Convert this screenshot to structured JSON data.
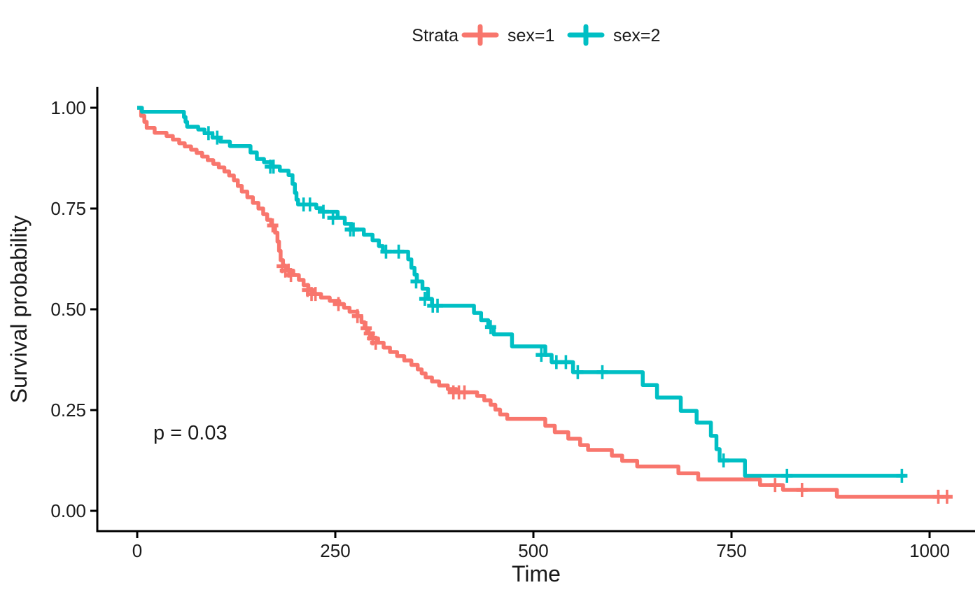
{
  "legend": {
    "title": "Strata",
    "items": [
      {
        "label": "sex=1",
        "color": "#F8766D"
      },
      {
        "label": "sex=2",
        "color": "#00BFC4"
      }
    ]
  },
  "axes": {
    "x": {
      "label": "Time",
      "ticks": [
        0,
        250,
        500,
        750,
        1000
      ],
      "tick_labels": [
        "0",
        "250",
        "500",
        "750",
        "1000"
      ]
    },
    "y": {
      "label": "Survival probability",
      "ticks": [
        0,
        0.25,
        0.5,
        0.75,
        1.0
      ],
      "tick_labels": [
        "0.00",
        "0.25",
        "0.50",
        "0.75",
        "1.00"
      ]
    }
  },
  "chart_data": {
    "type": "line",
    "subtype": "kaplan-meier-step",
    "title": "",
    "xlabel": "Time",
    "ylabel": "Survival probability",
    "xlim": [
      0,
      1040
    ],
    "ylim": [
      0,
      1.0
    ],
    "grid": false,
    "legend_position": "top",
    "legend_title": "Strata",
    "p_value": "p = 0.03",
    "series": [
      {
        "name": "sex=1",
        "color": "#F8766D",
        "end_time": 1025,
        "steps": [
          [
            0,
            1.0
          ],
          [
            5,
            0.98
          ],
          [
            9,
            0.965
          ],
          [
            12,
            0.95
          ],
          [
            22,
            0.938
          ],
          [
            37,
            0.93
          ],
          [
            45,
            0.921
          ],
          [
            53,
            0.912
          ],
          [
            60,
            0.904
          ],
          [
            68,
            0.896
          ],
          [
            75,
            0.888
          ],
          [
            82,
            0.879
          ],
          [
            89,
            0.87
          ],
          [
            96,
            0.861
          ],
          [
            103,
            0.852
          ],
          [
            110,
            0.842
          ],
          [
            116,
            0.832
          ],
          [
            122,
            0.82
          ],
          [
            127,
            0.806
          ],
          [
            132,
            0.792
          ],
          [
            139,
            0.778
          ],
          [
            146,
            0.764
          ],
          [
            153,
            0.75
          ],
          [
            159,
            0.736
          ],
          [
            164,
            0.722
          ],
          [
            169,
            0.708
          ],
          [
            174,
            0.69
          ],
          [
            177,
            0.668
          ],
          [
            179,
            0.645
          ],
          [
            181,
            0.622
          ],
          [
            184,
            0.607
          ],
          [
            190,
            0.596
          ],
          [
            197,
            0.585
          ],
          [
            204,
            0.573
          ],
          [
            210,
            0.56
          ],
          [
            216,
            0.548
          ],
          [
            223,
            0.538
          ],
          [
            232,
            0.529
          ],
          [
            243,
            0.521
          ],
          [
            255,
            0.513
          ],
          [
            261,
            0.504
          ],
          [
            268,
            0.494
          ],
          [
            278,
            0.483
          ],
          [
            283,
            0.468
          ],
          [
            287,
            0.453
          ],
          [
            292,
            0.44
          ],
          [
            297,
            0.428
          ],
          [
            304,
            0.417
          ],
          [
            311,
            0.405
          ],
          [
            319,
            0.394
          ],
          [
            328,
            0.384
          ],
          [
            337,
            0.373
          ],
          [
            346,
            0.362
          ],
          [
            354,
            0.351
          ],
          [
            359,
            0.341
          ],
          [
            364,
            0.331
          ],
          [
            372,
            0.321
          ],
          [
            381,
            0.311
          ],
          [
            392,
            0.302
          ],
          [
            403,
            0.294
          ],
          [
            429,
            0.285
          ],
          [
            438,
            0.274
          ],
          [
            446,
            0.263
          ],
          [
            452,
            0.251
          ],
          [
            458,
            0.239
          ],
          [
            467,
            0.228
          ],
          [
            515,
            0.211
          ],
          [
            527,
            0.195
          ],
          [
            544,
            0.179
          ],
          [
            559,
            0.163
          ],
          [
            569,
            0.151
          ],
          [
            599,
            0.137
          ],
          [
            612,
            0.124
          ],
          [
            631,
            0.11
          ],
          [
            683,
            0.093
          ],
          [
            708,
            0.078
          ],
          [
            786,
            0.064
          ],
          [
            815,
            0.052
          ],
          [
            883,
            0.035
          ]
        ],
        "censor_marks": [
          [
            171,
            0.708
          ],
          [
            183,
            0.607
          ],
          [
            187,
            0.596
          ],
          [
            191,
            0.596
          ],
          [
            194,
            0.585
          ],
          [
            215,
            0.548
          ],
          [
            220,
            0.538
          ],
          [
            225,
            0.538
          ],
          [
            254,
            0.513
          ],
          [
            278,
            0.483
          ],
          [
            289,
            0.453
          ],
          [
            293,
            0.44
          ],
          [
            297,
            0.428
          ],
          [
            301,
            0.417
          ],
          [
            399,
            0.294
          ],
          [
            406,
            0.294
          ],
          [
            413,
            0.294
          ],
          [
            805,
            0.064
          ],
          [
            839,
            0.052
          ],
          [
            1011,
            0.035
          ],
          [
            1022,
            0.035
          ]
        ]
      },
      {
        "name": "sex=2",
        "color": "#00BFC4",
        "end_time": 969,
        "steps": [
          [
            0,
            1.0
          ],
          [
            6,
            0.99
          ],
          [
            59,
            0.977
          ],
          [
            61,
            0.965
          ],
          [
            63,
            0.953
          ],
          [
            77,
            0.946
          ],
          [
            85,
            0.937
          ],
          [
            95,
            0.926
          ],
          [
            105,
            0.916
          ],
          [
            117,
            0.905
          ],
          [
            143,
            0.889
          ],
          [
            151,
            0.873
          ],
          [
            160,
            0.865
          ],
          [
            170,
            0.854
          ],
          [
            180,
            0.844
          ],
          [
            191,
            0.833
          ],
          [
            196,
            0.811
          ],
          [
            199,
            0.789
          ],
          [
            201,
            0.772
          ],
          [
            203,
            0.76
          ],
          [
            226,
            0.751
          ],
          [
            234,
            0.742
          ],
          [
            253,
            0.727
          ],
          [
            262,
            0.712
          ],
          [
            271,
            0.698
          ],
          [
            286,
            0.685
          ],
          [
            297,
            0.671
          ],
          [
            305,
            0.657
          ],
          [
            310,
            0.643
          ],
          [
            342,
            0.624
          ],
          [
            346,
            0.603
          ],
          [
            350,
            0.586
          ],
          [
            353,
            0.569
          ],
          [
            360,
            0.551
          ],
          [
            367,
            0.526
          ],
          [
            372,
            0.509
          ],
          [
            425,
            0.491
          ],
          [
            434,
            0.473
          ],
          [
            443,
            0.456
          ],
          [
            450,
            0.438
          ],
          [
            473,
            0.408
          ],
          [
            515,
            0.387
          ],
          [
            523,
            0.369
          ],
          [
            550,
            0.344
          ],
          [
            638,
            0.312
          ],
          [
            656,
            0.281
          ],
          [
            686,
            0.248
          ],
          [
            706,
            0.219
          ],
          [
            724,
            0.186
          ],
          [
            731,
            0.153
          ],
          [
            735,
            0.125
          ],
          [
            767,
            0.087
          ]
        ],
        "censor_marks": [
          [
            90,
            0.937
          ],
          [
            101,
            0.926
          ],
          [
            168,
            0.854
          ],
          [
            172,
            0.854
          ],
          [
            210,
            0.76
          ],
          [
            218,
            0.76
          ],
          [
            235,
            0.742
          ],
          [
            247,
            0.727
          ],
          [
            269,
            0.698
          ],
          [
            273,
            0.698
          ],
          [
            314,
            0.643
          ],
          [
            330,
            0.643
          ],
          [
            352,
            0.569
          ],
          [
            363,
            0.526
          ],
          [
            373,
            0.509
          ],
          [
            379,
            0.509
          ],
          [
            446,
            0.456
          ],
          [
            510,
            0.387
          ],
          [
            529,
            0.369
          ],
          [
            541,
            0.369
          ],
          [
            556,
            0.344
          ],
          [
            587,
            0.344
          ],
          [
            740,
            0.125
          ],
          [
            820,
            0.087
          ],
          [
            965,
            0.087
          ]
        ]
      }
    ]
  }
}
